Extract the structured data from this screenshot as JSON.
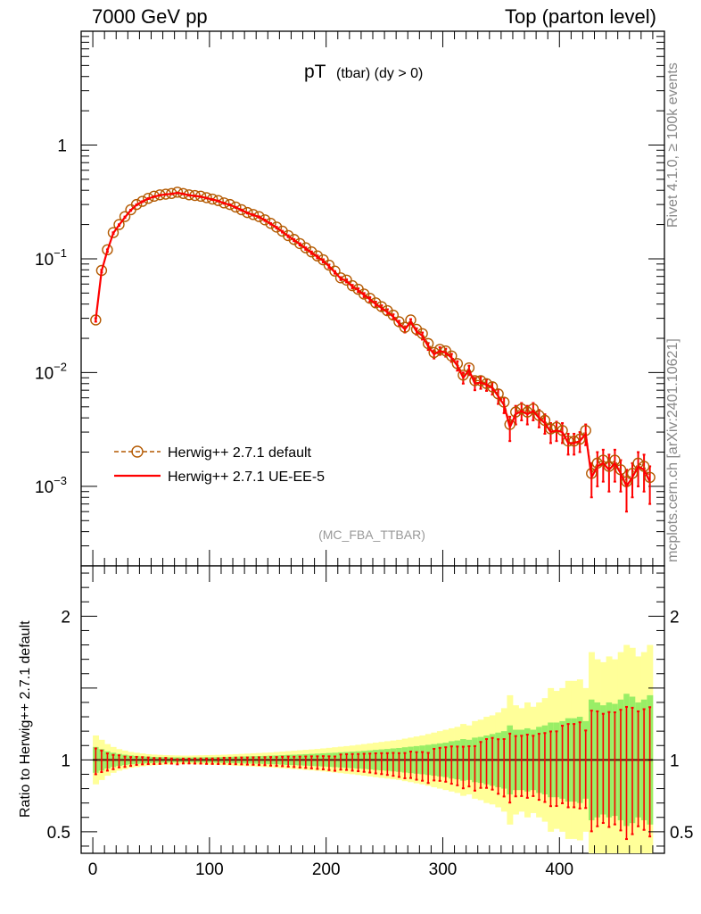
{
  "header": {
    "left_label": "7000 GeV pp",
    "right_label": "Top (parton level)"
  },
  "side_labels": {
    "rivet": "Rivet 4.1.0, ≥ 100k events",
    "mcplots": "mcplots.cern.ch [arXiv:2401.10621]"
  },
  "colors": {
    "default_series": "#b35900",
    "ue_series": "#ff0000",
    "band_outer": "#ffff99",
    "band_inner": "#99ee66",
    "ratio_line": "#5a1a0a"
  },
  "chart_data": [
    {
      "type": "line",
      "title_main": "pT",
      "title_sub": "(tbar) (dy > 0)",
      "watermark": "(MC_FBA_TTBAR)",
      "yscale": "log",
      "xlim": [
        -10,
        490
      ],
      "ylim": [
        0.0002,
        10
      ],
      "y_ticks": [
        {
          "value": 1,
          "label": "1"
        },
        {
          "value": 0.1,
          "label": "10",
          "exp": "−1"
        },
        {
          "value": 0.01,
          "label": "10",
          "exp": "−2"
        },
        {
          "value": 0.001,
          "label": "10",
          "exp": "−3"
        }
      ],
      "legend_position": "lower-left",
      "x": [
        2.5,
        7.5,
        12.5,
        17.5,
        22.5,
        27.5,
        32.5,
        37.5,
        42.5,
        47.5,
        52.5,
        57.5,
        62.5,
        67.5,
        72.5,
        77.5,
        82.5,
        87.5,
        92.5,
        97.5,
        102.5,
        107.5,
        112.5,
        117.5,
        122.5,
        127.5,
        132.5,
        137.5,
        142.5,
        147.5,
        152.5,
        157.5,
        162.5,
        167.5,
        172.5,
        177.5,
        182.5,
        187.5,
        192.5,
        197.5,
        202.5,
        207.5,
        212.5,
        217.5,
        222.5,
        227.5,
        232.5,
        237.5,
        242.5,
        247.5,
        252.5,
        257.5,
        262.5,
        267.5,
        272.5,
        277.5,
        282.5,
        287.5,
        292.5,
        297.5,
        302.5,
        307.5,
        312.5,
        317.5,
        322.5,
        327.5,
        332.5,
        337.5,
        342.5,
        347.5,
        352.5,
        357.5,
        362.5,
        367.5,
        372.5,
        377.5,
        382.5,
        387.5,
        392.5,
        397.5,
        402.5,
        407.5,
        412.5,
        417.5,
        422.5,
        427.5,
        432.5,
        437.5,
        442.5,
        447.5,
        452.5,
        457.5,
        462.5,
        467.5,
        472.5,
        477.5
      ],
      "series": [
        {
          "name": "Herwig++ 2.7.1 default",
          "style": "dashed-open-circle",
          "values": [
            0.029,
            0.079,
            0.12,
            0.17,
            0.2,
            0.235,
            0.27,
            0.3,
            0.32,
            0.34,
            0.355,
            0.365,
            0.37,
            0.375,
            0.385,
            0.375,
            0.365,
            0.36,
            0.355,
            0.345,
            0.335,
            0.325,
            0.31,
            0.3,
            0.285,
            0.27,
            0.255,
            0.245,
            0.235,
            0.22,
            0.205,
            0.19,
            0.175,
            0.16,
            0.148,
            0.136,
            0.125,
            0.115,
            0.106,
            0.098,
            0.088,
            0.078,
            0.068,
            0.065,
            0.058,
            0.054,
            0.049,
            0.045,
            0.041,
            0.038,
            0.035,
            0.032,
            0.028,
            0.025,
            0.029,
            0.024,
            0.022,
            0.018,
            0.015,
            0.016,
            0.0155,
            0.014,
            0.012,
            0.0095,
            0.011,
            0.0085,
            0.0085,
            0.008,
            0.0075,
            0.0065,
            0.0055,
            0.0035,
            0.0045,
            0.0048,
            0.0045,
            0.0048,
            0.0042,
            0.0038,
            0.0032,
            0.0033,
            0.0031,
            0.0025,
            0.0025,
            0.0026,
            0.0031,
            0.0013,
            0.0016,
            0.0017,
            0.0015,
            0.0017,
            0.0014,
            0.0011,
            0.0013,
            0.0016,
            0.0015,
            0.0012
          ],
          "errors": [
            0.001,
            0.002,
            0.003,
            0.003,
            0.003,
            0.003,
            0.003,
            0.003,
            0.003,
            0.003,
            0.003,
            0.003,
            0.003,
            0.003,
            0.003,
            0.003,
            0.003,
            0.003,
            0.003,
            0.003,
            0.003,
            0.003,
            0.003,
            0.003,
            0.003,
            0.003,
            0.003,
            0.003,
            0.003,
            0.003,
            0.003,
            0.003,
            0.003,
            0.003,
            0.003,
            0.003,
            0.003,
            0.003,
            0.003,
            0.003,
            0.003,
            0.002,
            0.002,
            0.002,
            0.002,
            0.002,
            0.002,
            0.002,
            0.002,
            0.002,
            0.002,
            0.0015,
            0.0015,
            0.0015,
            0.0015,
            0.0015,
            0.0015,
            0.0012,
            0.0012,
            0.0012,
            0.0012,
            0.0011,
            0.0011,
            0.001,
            0.001,
            0.001,
            0.001,
            0.0009,
            0.0009,
            0.0009,
            0.0008,
            0.0008,
            0.0008,
            0.0008,
            0.0008,
            0.0008,
            0.0007,
            0.0007,
            0.0006,
            0.0006,
            0.0006,
            0.0005,
            0.0005,
            0.0005,
            0.0006,
            0.0004,
            0.0005,
            0.0005,
            0.0005,
            0.0005,
            0.0004,
            0.0004,
            0.0004,
            0.0005,
            0.0005,
            0.0004
          ]
        },
        {
          "name": "Herwig++ 2.7.1 UE-EE-5",
          "style": "solid-line",
          "values": [
            0.029,
            0.078,
            0.118,
            0.168,
            0.198,
            0.232,
            0.267,
            0.298,
            0.318,
            0.338,
            0.352,
            0.362,
            0.368,
            0.372,
            0.38,
            0.372,
            0.362,
            0.357,
            0.352,
            0.342,
            0.332,
            0.322,
            0.308,
            0.298,
            0.283,
            0.268,
            0.253,
            0.243,
            0.233,
            0.218,
            0.203,
            0.188,
            0.173,
            0.158,
            0.146,
            0.134,
            0.123,
            0.113,
            0.104,
            0.096,
            0.086,
            0.076,
            0.067,
            0.064,
            0.057,
            0.053,
            0.048,
            0.044,
            0.04,
            0.037,
            0.034,
            0.031,
            0.027,
            0.024,
            0.028,
            0.023,
            0.021,
            0.017,
            0.0145,
            0.0155,
            0.015,
            0.0135,
            0.0115,
            0.009,
            0.0105,
            0.008,
            0.0082,
            0.0078,
            0.0073,
            0.0062,
            0.0052,
            0.0033,
            0.0043,
            0.0046,
            0.0043,
            0.0046,
            0.004,
            0.0036,
            0.003,
            0.0031,
            0.003,
            0.0024,
            0.0024,
            0.0025,
            0.0029,
            0.0012,
            0.0015,
            0.0016,
            0.0014,
            0.0016,
            0.0013,
            0.001,
            0.0012,
            0.0015,
            0.0014,
            0.0011
          ]
        }
      ]
    },
    {
      "type": "line",
      "ylabel": "Ratio to Herwig++ 2.7.1 default",
      "xlim": [
        -10,
        490
      ],
      "ylim": [
        0.35,
        2.35
      ],
      "x_ticks": [
        0,
        100,
        200,
        300,
        400
      ],
      "y_ticks": [
        {
          "value": 0.5,
          "label": "0.5"
        },
        {
          "value": 1,
          "label": "1"
        },
        {
          "value": 2,
          "label": "2"
        }
      ],
      "band_half_width_outer": [
        0.17,
        0.14,
        0.11,
        0.09,
        0.075,
        0.065,
        0.055,
        0.05,
        0.045,
        0.04,
        0.037,
        0.035,
        0.033,
        0.032,
        0.031,
        0.03,
        0.03,
        0.031,
        0.032,
        0.033,
        0.034,
        0.035,
        0.036,
        0.038,
        0.04,
        0.042,
        0.044,
        0.046,
        0.048,
        0.05,
        0.052,
        0.055,
        0.058,
        0.061,
        0.064,
        0.067,
        0.07,
        0.073,
        0.076,
        0.08,
        0.084,
        0.088,
        0.092,
        0.096,
        0.1,
        0.105,
        0.11,
        0.115,
        0.12,
        0.125,
        0.13,
        0.135,
        0.14,
        0.148,
        0.155,
        0.163,
        0.17,
        0.18,
        0.19,
        0.2,
        0.21,
        0.22,
        0.23,
        0.25,
        0.24,
        0.27,
        0.28,
        0.3,
        0.31,
        0.33,
        0.36,
        0.45,
        0.38,
        0.36,
        0.4,
        0.37,
        0.4,
        0.43,
        0.5,
        0.48,
        0.5,
        0.55,
        0.55,
        0.56,
        0.5,
        0.75,
        0.7,
        0.68,
        0.72,
        0.7,
        0.75,
        0.8,
        0.78,
        0.72,
        0.75,
        0.8
      ],
      "band_half_width_inner": [
        0.09,
        0.075,
        0.06,
        0.05,
        0.042,
        0.036,
        0.031,
        0.028,
        0.025,
        0.023,
        0.021,
        0.02,
        0.019,
        0.018,
        0.018,
        0.017,
        0.017,
        0.018,
        0.018,
        0.019,
        0.019,
        0.02,
        0.021,
        0.022,
        0.023,
        0.024,
        0.025,
        0.026,
        0.027,
        0.028,
        0.03,
        0.031,
        0.033,
        0.035,
        0.036,
        0.038,
        0.04,
        0.042,
        0.044,
        0.046,
        0.048,
        0.05,
        0.053,
        0.055,
        0.058,
        0.06,
        0.063,
        0.066,
        0.07,
        0.073,
        0.076,
        0.08,
        0.083,
        0.088,
        0.092,
        0.096,
        0.1,
        0.105,
        0.11,
        0.115,
        0.12,
        0.13,
        0.135,
        0.145,
        0.14,
        0.155,
        0.16,
        0.17,
        0.18,
        0.19,
        0.2,
        0.24,
        0.21,
        0.21,
        0.22,
        0.21,
        0.23,
        0.24,
        0.26,
        0.26,
        0.27,
        0.29,
        0.29,
        0.3,
        0.27,
        0.42,
        0.4,
        0.38,
        0.4,
        0.39,
        0.42,
        0.46,
        0.44,
        0.4,
        0.42,
        0.45
      ],
      "ratio_values": [
        0.99,
        0.99,
        0.985,
        0.985,
        0.99,
        0.987,
        0.989,
        0.993,
        0.994,
        0.994,
        0.992,
        0.992,
        0.995,
        0.992,
        0.987,
        0.992,
        0.992,
        0.992,
        0.992,
        0.991,
        0.991,
        0.991,
        0.994,
        0.993,
        0.993,
        0.993,
        0.992,
        0.992,
        0.991,
        0.991,
        0.99,
        0.989,
        0.989,
        0.988,
        0.986,
        0.985,
        0.984,
        0.983,
        0.981,
        0.98,
        0.977,
        0.974,
        0.985,
        0.985,
        0.983,
        0.981,
        0.98,
        0.978,
        0.976,
        0.974,
        0.971,
        0.969,
        0.964,
        0.96,
        0.966,
        0.958,
        0.955,
        0.944,
        0.967,
        0.969,
        0.968,
        0.964,
        0.958,
        0.947,
        0.955,
        0.941,
        0.965,
        0.975,
        0.973,
        0.954,
        0.945,
        0.943,
        0.956,
        0.958,
        0.956,
        0.958,
        0.952,
        0.947,
        0.938,
        0.939,
        0.968,
        0.96,
        0.96,
        0.962,
        0.935,
        0.923,
        0.938,
        0.941,
        0.933,
        0.941,
        0.929,
        0.909,
        0.923,
        0.938,
        0.933,
        0.917
      ]
    }
  ]
}
